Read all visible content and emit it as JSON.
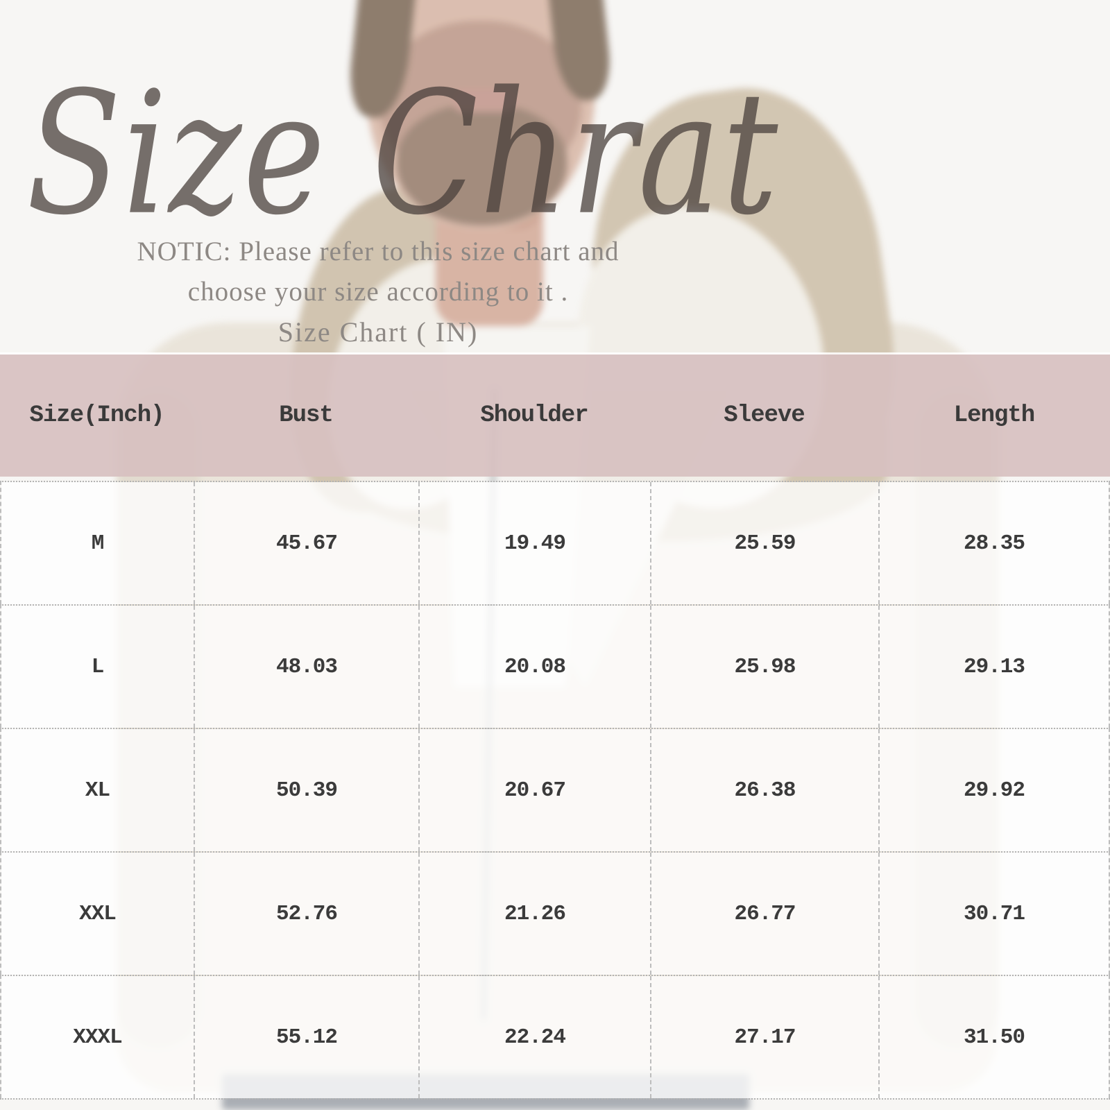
{
  "chart_data": {
    "type": "table",
    "title": "Size Chrat",
    "notice_lines": [
      "NOTIC: Please refer to this size chart and",
      "choose your size according to it .",
      "Size Chart ( IN)"
    ],
    "columns": [
      "Size(Inch)",
      "Bust",
      "Shoulder",
      "Sleeve",
      "Length"
    ],
    "rows": [
      [
        "M",
        "45.67",
        "19.49",
        "25.59",
        "28.35"
      ],
      [
        "L",
        "48.03",
        "20.08",
        "25.98",
        "29.13"
      ],
      [
        "XL",
        "50.39",
        "20.67",
        "26.38",
        "29.92"
      ],
      [
        "XXL",
        "52.76",
        "21.26",
        "26.77",
        "30.71"
      ],
      [
        "XXXL",
        "55.12",
        "22.24",
        "27.17",
        "31.50"
      ]
    ],
    "units": "inches"
  },
  "colors": {
    "page_background": "#f7f6f4",
    "header_band": "#d7c0c0",
    "title_script": "#4a403c",
    "notice_text": "#8d8884",
    "table_text": "#3a3a3a",
    "grid_line": "#b7b7b7",
    "jacket_tan": "#cfc1ab",
    "sherpa_white": "#f2efe8"
  }
}
